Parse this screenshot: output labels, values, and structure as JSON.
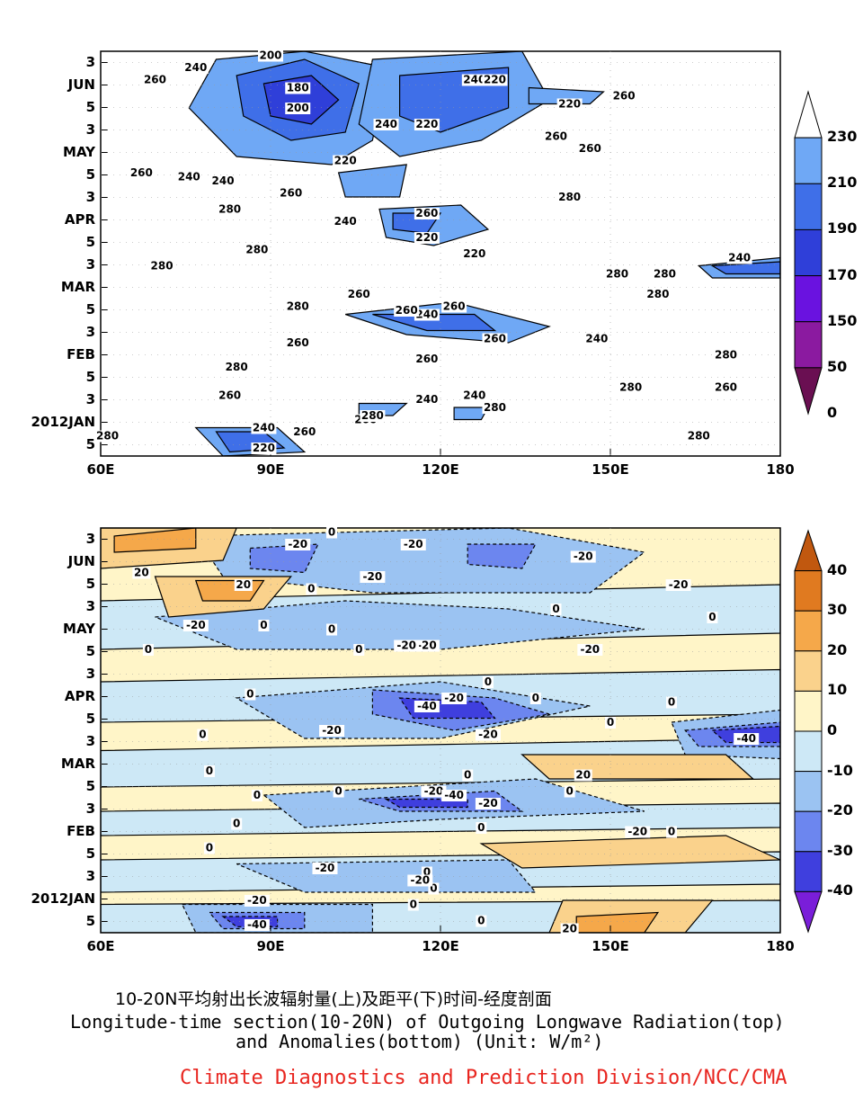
{
  "chart_data": [
    {
      "type": "heatmap",
      "subtype": "filled-contour",
      "panel": "top",
      "variable": "Outgoing Longwave Radiation",
      "x_axis": {
        "ticks": [
          "60E",
          "90E",
          "120E",
          "150E",
          "180"
        ],
        "range": [
          60,
          180
        ],
        "unit": "degrees longitude"
      },
      "y_axis": {
        "ticks": [
          "5",
          "2012JAN",
          "3",
          "5",
          "FEB",
          "3",
          "5",
          "MAR",
          "3",
          "5",
          "APR",
          "3",
          "5",
          "MAY",
          "3",
          "5",
          "JUN",
          "3"
        ],
        "direction": "time increasing upward (pentads)"
      },
      "colorbar": {
        "levels": [
          "230",
          "210",
          "190",
          "170",
          "150",
          "50",
          "0"
        ],
        "colors": [
          "#ffffff",
          "#6fa8f5",
          "#3f6fe8",
          "#2f3fd9",
          "#6a12e0",
          "#8b1aa0",
          "#6a0f52"
        ],
        "extend": "both"
      },
      "contour_labels": [
        "200",
        "240",
        "260",
        "180",
        "240",
        "220",
        "200",
        "220",
        "240",
        "220",
        "260",
        "260",
        "220",
        "260",
        "240",
        "260",
        "240",
        "280",
        "260",
        "240",
        "260",
        "220",
        "220",
        "280",
        "280",
        "280",
        "260",
        "280",
        "240",
        "280",
        "280",
        "260",
        "240",
        "260",
        "280",
        "260",
        "240",
        "260",
        "280",
        "280",
        "280",
        "260",
        "260",
        "260",
        "240",
        "240",
        "260",
        "280",
        "280",
        "280",
        "240",
        "260",
        "220",
        "280"
      ],
      "regions": [
        {
          "lon": [
            82,
            102
          ],
          "time": "JUN",
          "olr_min": 180
        },
        {
          "lon": [
            112,
            132
          ],
          "time": "JUN",
          "olr_min": 200
        },
        {
          "lon": [
            140,
            148
          ],
          "time": "late MAY",
          "olr_min": 220
        },
        {
          "lon": [
            110,
            130
          ],
          "time": "early APR",
          "olr_min": 220
        },
        {
          "lon": [
            105,
            125
          ],
          "time": "late FEB",
          "olr_min": 240
        },
        {
          "lon": [
            168,
            180
          ],
          "time": "mid MAR",
          "olr_min": 220
        },
        {
          "lon": [
            80,
            95
          ],
          "time": "early JAN",
          "olr_min": 220
        }
      ]
    },
    {
      "type": "heatmap",
      "subtype": "filled-contour",
      "panel": "bottom",
      "variable": "OLR Anomalies",
      "x_axis": {
        "ticks": [
          "60E",
          "90E",
          "120E",
          "150E",
          "180"
        ],
        "range": [
          60,
          180
        ],
        "unit": "degrees longitude"
      },
      "y_axis": {
        "ticks": [
          "5",
          "2012JAN",
          "3",
          "5",
          "FEB",
          "3",
          "5",
          "MAR",
          "3",
          "5",
          "APR",
          "3",
          "5",
          "MAY",
          "3",
          "5",
          "JUN",
          "3"
        ],
        "direction": "time increasing upward (pentads)"
      },
      "colorbar": {
        "levels": [
          "40",
          "30",
          "20",
          "10",
          "0",
          "-10",
          "-20",
          "-30",
          "-40"
        ],
        "colors": [
          "#c1580f",
          "#e07a20",
          "#f5a84a",
          "#fad28c",
          "#fff5c8",
          "#cde8f6",
          "#9bc3f2",
          "#6c86ef",
          "#3f3fde",
          "#7a1ed9"
        ],
        "extend": "both"
      },
      "contour_labels": [
        "0",
        "-20",
        "-20",
        "-20",
        "20",
        "-20",
        "-20",
        "20",
        "0",
        "0",
        "-20",
        "0",
        "0",
        "0",
        "0",
        "-20",
        "-20",
        "0",
        "-20",
        "0",
        "0",
        "0",
        "0",
        "0",
        "-20",
        "-40",
        "-20",
        "0",
        "-20",
        "-20",
        "-40",
        "0",
        "20",
        "0",
        "0",
        "-20",
        "-40",
        "0",
        "0",
        "0",
        "-20",
        "0",
        "0",
        "-20",
        "0",
        "0",
        "-20",
        "0",
        "-20",
        "0",
        "-20",
        "0",
        "-40",
        "20"
      ],
      "regions": [
        {
          "lon": [
            110,
            130
          ],
          "time": "early APR",
          "anomaly_min": -40
        },
        {
          "lon": [
            105,
            125
          ],
          "time": "late FEB",
          "anomaly_min": -40
        },
        {
          "lon": [
            168,
            180
          ],
          "time": "mid MAR",
          "anomaly_min": -40
        },
        {
          "lon": [
            78,
            95
          ],
          "time": "early JAN",
          "anomaly_min": -40
        },
        {
          "lon": [
            62,
            88
          ],
          "time": "JUN",
          "anomaly_max": 30
        }
      ]
    }
  ],
  "captions": {
    "zh": "10-20N平均射出长波辐射量(上)及距平(下)时间-经度剖面",
    "en_line1": "Longitude-time section(10-20N) of Outgoing Longwave Radiation(top)",
    "en_line2": "and Anomalies(bottom) (Unit: W/m²)",
    "organization": "Climate Diagnostics and Prediction Division/NCC/CMA"
  }
}
